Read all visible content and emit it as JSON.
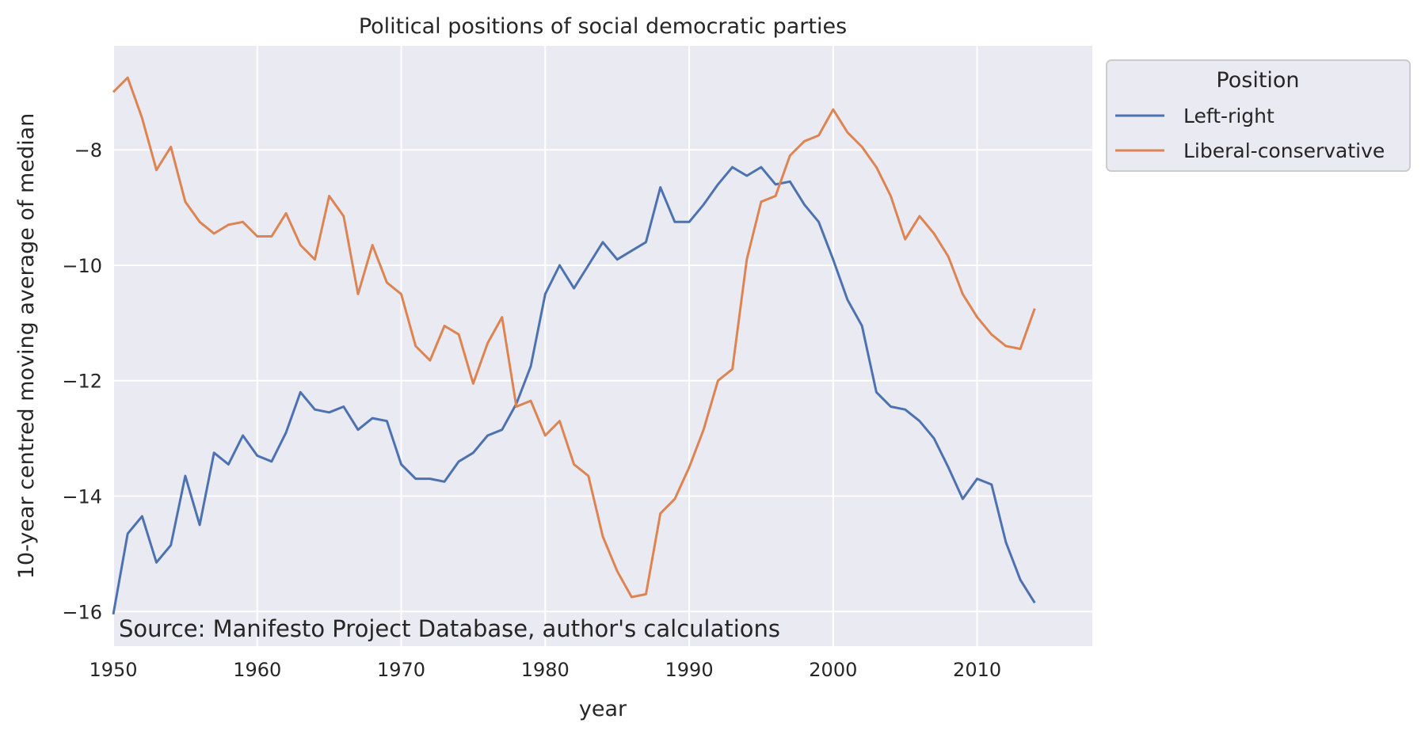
{
  "chart_data": {
    "type": "line",
    "title": "Political positions of social democratic parties",
    "xlabel": "year",
    "ylabel": "10-year centred moving average of median",
    "annotation": "Source: Manifesto Project Database, author's calculations",
    "xlim": [
      1950,
      2018
    ],
    "ylim": [
      -16.6,
      -6.2
    ],
    "xticks": [
      1950,
      1960,
      1970,
      1980,
      1990,
      2000,
      2010
    ],
    "yticks": [
      -16,
      -14,
      -12,
      -10,
      -8
    ],
    "grid": true,
    "legend": {
      "title": "Position",
      "placement": "outside-top-right"
    },
    "x": [
      1950,
      1951,
      1952,
      1953,
      1954,
      1955,
      1956,
      1957,
      1958,
      1959,
      1960,
      1961,
      1962,
      1963,
      1964,
      1965,
      1966,
      1967,
      1968,
      1969,
      1970,
      1971,
      1972,
      1973,
      1974,
      1975,
      1976,
      1977,
      1978,
      1979,
      1980,
      1981,
      1982,
      1983,
      1984,
      1985,
      1986,
      1987,
      1988,
      1989,
      1990,
      1991,
      1992,
      1993,
      1994,
      1995,
      1996,
      1997,
      1998,
      1999,
      2000,
      2001,
      2002,
      2003,
      2004,
      2005,
      2006,
      2007,
      2008,
      2009,
      2010,
      2011,
      2012,
      2013,
      2014
    ],
    "series": [
      {
        "name": "Left-right",
        "color": "#4c72b0",
        "values": [
          -16.05,
          -14.65,
          -14.35,
          -15.15,
          -14.85,
          -13.65,
          -14.5,
          -13.25,
          -13.45,
          -12.95,
          -13.3,
          -13.4,
          -12.9,
          -12.2,
          -12.5,
          -12.55,
          -12.45,
          -12.85,
          -12.65,
          -12.7,
          -13.45,
          -13.7,
          -13.7,
          -13.75,
          -13.4,
          -13.25,
          -12.95,
          -12.85,
          -12.4,
          -11.75,
          -10.5,
          -10.0,
          -10.4,
          -10.0,
          -9.6,
          -9.9,
          -9.75,
          -9.6,
          -8.65,
          -9.25,
          -9.25,
          -8.95,
          -8.6,
          -8.3,
          -8.45,
          -8.3,
          -8.6,
          -8.55,
          -8.95,
          -9.25,
          -9.9,
          -10.6,
          -11.05,
          -12.2,
          -12.45,
          -12.5,
          -12.7,
          -13.0,
          -13.5,
          -14.05,
          -13.7,
          -13.8,
          -14.8,
          -15.45,
          -15.85
        ]
      },
      {
        "name": "Liberal-conservative",
        "color": "#dd8452",
        "values": [
          -7.0,
          -6.75,
          -7.45,
          -8.35,
          -7.95,
          -8.9,
          -9.25,
          -9.45,
          -9.3,
          -9.25,
          -9.5,
          -9.5,
          -9.1,
          -9.65,
          -9.9,
          -8.8,
          -9.15,
          -10.5,
          -9.65,
          -10.3,
          -10.5,
          -11.4,
          -11.65,
          -11.05,
          -11.2,
          -12.05,
          -11.35,
          -10.9,
          -12.45,
          -12.35,
          -12.95,
          -12.7,
          -13.45,
          -13.65,
          -14.7,
          -15.3,
          -15.75,
          -15.7,
          -14.3,
          -14.05,
          -13.5,
          -12.85,
          -12.0,
          -11.8,
          -9.9,
          -8.9,
          -8.8,
          -8.1,
          -7.85,
          -7.75,
          -7.3,
          -7.7,
          -7.95,
          -8.3,
          -8.8,
          -9.55,
          -9.15,
          -9.45,
          -9.85,
          -10.5,
          -10.9,
          -11.2,
          -11.4,
          -11.45,
          -10.75
        ]
      }
    ]
  }
}
